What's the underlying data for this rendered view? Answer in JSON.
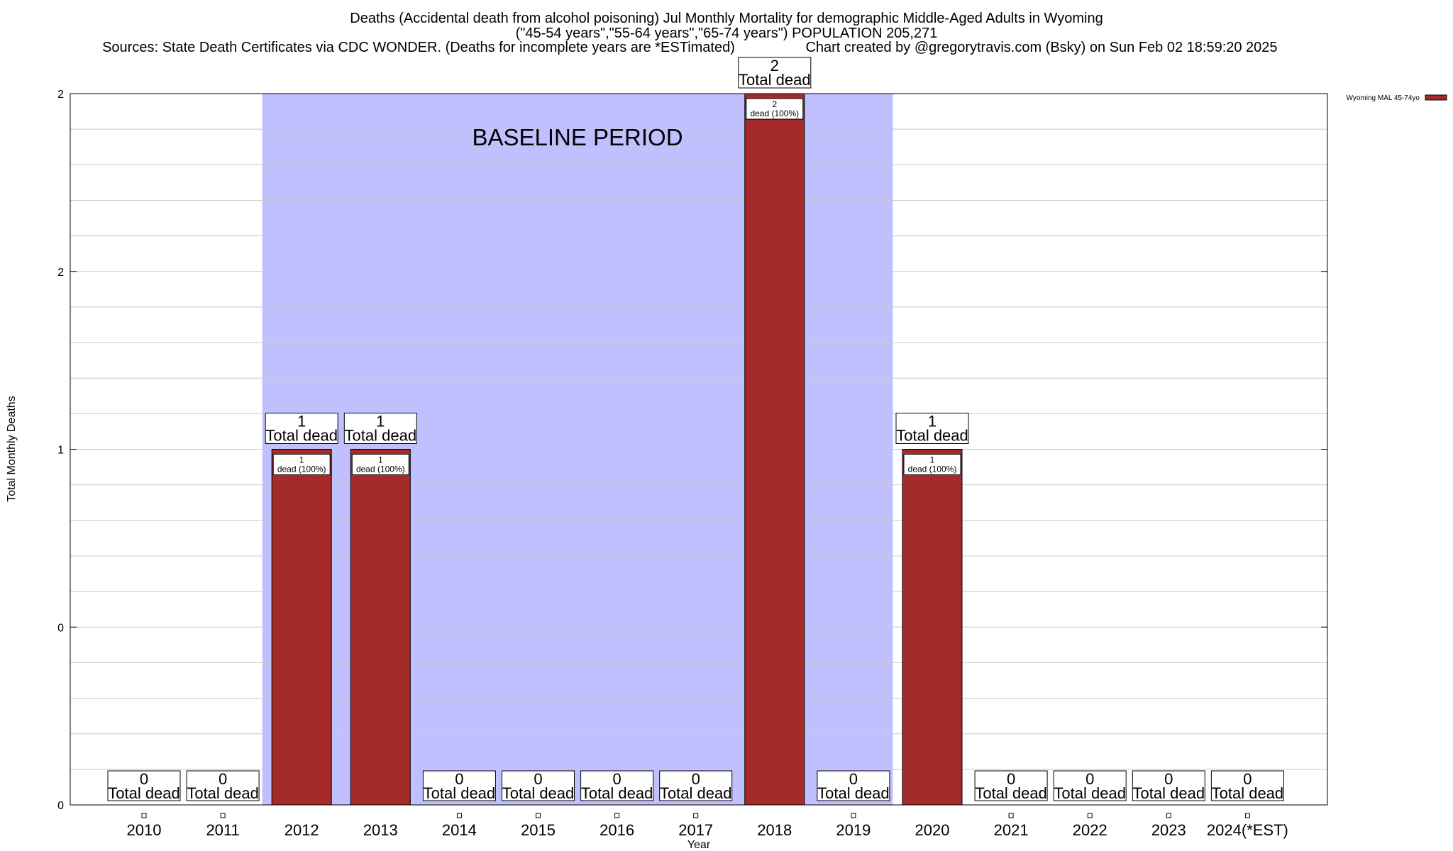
{
  "title": {
    "line1": "Deaths (Accidental death from alcohol poisoning) Jul Monthly Mortality for demographic Middle-Aged Adults in Wyoming",
    "line2": "(\"45-54 years\",\"55-64 years\",\"65-74 years\") POPULATION 205,271",
    "line3_left": "Sources: State Death Certificates via CDC WONDER. (Deaths for incomplete years are *ESTimated)",
    "line3_right": "Chart created by @gregorytravis.com (Bsky) on Sun Feb 02 18:59:20 2025"
  },
  "colors": {
    "bar": "#a52a2a",
    "baseline_band": "#c0c0ff",
    "grid": "#c8c8c8"
  },
  "chart_data": {
    "type": "bar",
    "xlabel": "Year",
    "ylabel": "Total Monthly Deaths",
    "ylim": [
      0,
      2
    ],
    "y_tick_labels": [
      "0",
      "0",
      "1",
      "2",
      "2"
    ],
    "grid": true,
    "legend": {
      "entry": "Wyoming MAL 45-74yo",
      "placement": "top-right"
    },
    "annotation": "BASELINE PERIOD",
    "baseline_period": [
      "2012",
      "2019"
    ],
    "categories": [
      "2010",
      "2011",
      "2012",
      "2013",
      "2014",
      "2015",
      "2016",
      "2017",
      "2018",
      "2019",
      "2020",
      "2021",
      "2022",
      "2023",
      "2024(*EST)"
    ],
    "series": [
      {
        "name": "Wyoming MAL 45-74yo",
        "values": [
          0,
          0,
          1,
          1,
          0,
          0,
          0,
          0,
          2,
          0,
          1,
          0,
          0,
          0,
          0
        ]
      }
    ],
    "total_label": "Total dead",
    "inner_label": "dead (100%)"
  }
}
